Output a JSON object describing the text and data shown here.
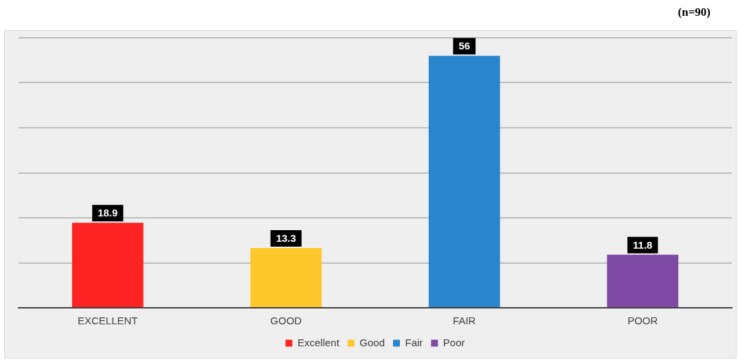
{
  "chart_data": {
    "type": "bar",
    "categories": [
      "EXCELLENT",
      "GOOD",
      "FAIR",
      "POOR"
    ],
    "series": [
      {
        "name": "Excellent",
        "color": "#fd2323",
        "values": [
          18.9,
          null,
          null,
          null
        ]
      },
      {
        "name": "Good",
        "color": "#fec72b",
        "values": [
          null,
          13.3,
          null,
          null
        ]
      },
      {
        "name": "Fair",
        "color": "#2a86cc",
        "values": [
          null,
          null,
          56,
          null
        ]
      },
      {
        "name": "Poor",
        "color": "#7f4aa6",
        "values": [
          null,
          null,
          null,
          11.8
        ]
      }
    ],
    "grid": "y",
    "legend": "bottom",
    "data_labels": true,
    "tick_labels": "x",
    "annotations": [
      "(n=90)"
    ]
  }
}
